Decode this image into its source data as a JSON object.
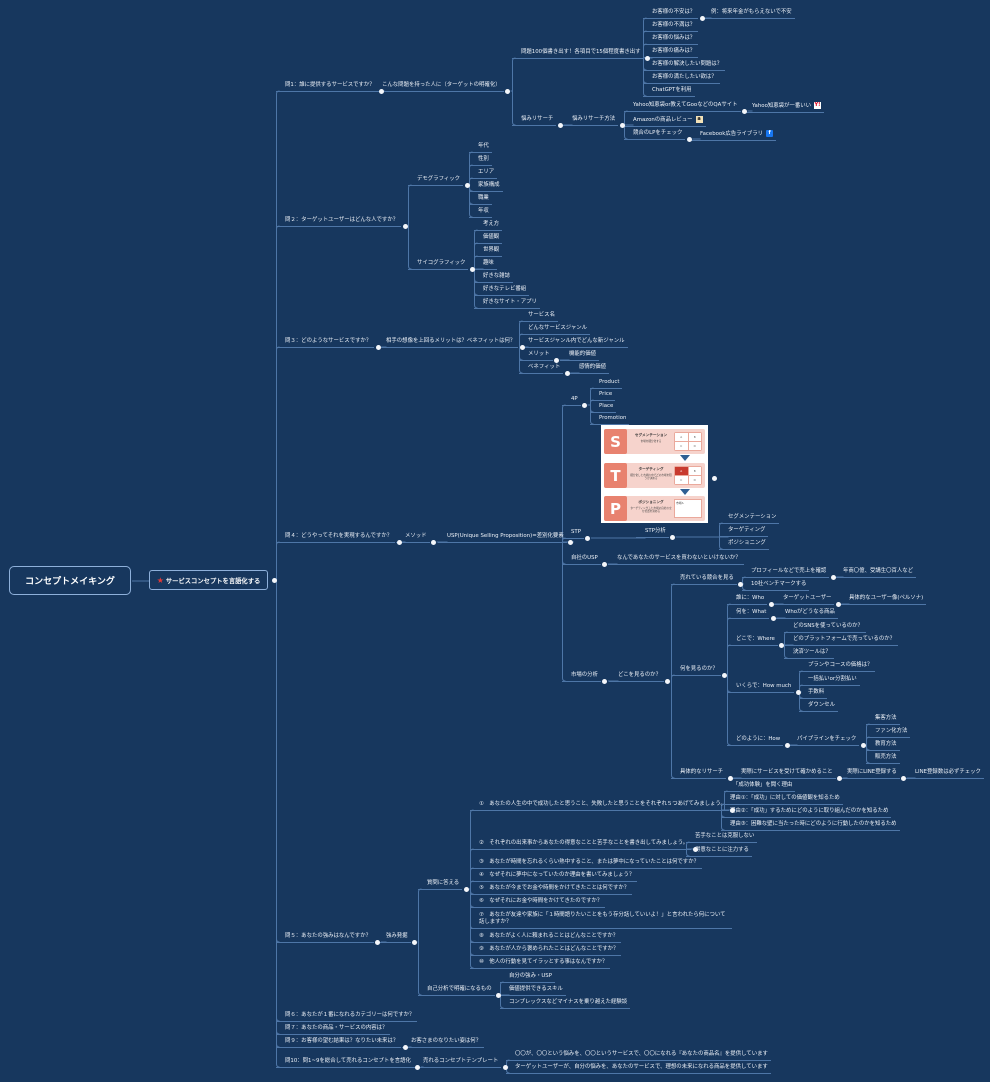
{
  "colors": {
    "background": "#17375e",
    "line": "#4e76a7",
    "star": "#e53935",
    "stp_accent": "#e8826f"
  },
  "root": {
    "text": "コンセプトメイキング"
  },
  "central": {
    "text": "サービスコンセプトを言語化する",
    "icon": "star-icon",
    "children": [
      {
        "text": "問1：誰に提供するサービスですか？",
        "children": [
          {
            "text": "こんな問題を持った人に（ターゲットの明確化）",
            "children": [
              {
                "text": "問題100個書き出す！各項目で15個程度書き出す",
                "children": [
                  {
                    "text": "お客様の不安は？",
                    "children": [
                      {
                        "text": "例：将来年金がもらえないで不安"
                      }
                    ]
                  },
                  {
                    "text": "お客様の不満は？"
                  },
                  {
                    "text": "お客様の悩みは？"
                  },
                  {
                    "text": "お客様の痛みは？"
                  },
                  {
                    "text": "お客様の解決したい問題は？"
                  },
                  {
                    "text": "お客様の満たしたい欲は？"
                  },
                  {
                    "text": "ChatGPTを利用"
                  }
                ]
              },
              {
                "text": "悩みリサーチ",
                "children": [
                  {
                    "text": "悩みリサーチ方法",
                    "children": [
                      {
                        "text": "Yahoo知恵袋or教えてGooなどのQAサイト",
                        "children": [
                          {
                            "text": "Yahoo知恵袋が一番いい",
                            "icon": "yahoo"
                          }
                        ]
                      },
                      {
                        "text": "Amazonの商品レビュー",
                        "icon": "amazon"
                      },
                      {
                        "text": "競合のLPをチェック",
                        "children": [
                          {
                            "text": "Facebook広告ライブラリ",
                            "icon": "facebook"
                          }
                        ]
                      }
                    ]
                  }
                ]
              }
            ]
          }
        ]
      },
      {
        "text": "問２：ターゲットユーザーはどんな人ですか？",
        "children": [
          {
            "text": "デモグラフィック",
            "children": [
              {
                "text": "年代"
              },
              {
                "text": "性別"
              },
              {
                "text": "エリア"
              },
              {
                "text": "家族構成"
              },
              {
                "text": "職業"
              },
              {
                "text": "年収"
              }
            ]
          },
          {
            "text": "サイコグラフィック",
            "children": [
              {
                "text": "考え方"
              },
              {
                "text": "価値観"
              },
              {
                "text": "世界観"
              },
              {
                "text": "趣味"
              },
              {
                "text": "好きな雑誌"
              },
              {
                "text": "好きなテレビ番組"
              },
              {
                "text": "好きなサイト・アプリ"
              }
            ]
          }
        ]
      },
      {
        "text": "問３：どのようなサービスですか？",
        "children": [
          {
            "text": "相手の想像を上回るメリットは？ベネフィットは何？",
            "children": [
              {
                "text": "サービス名"
              },
              {
                "text": "どんなサービスジャンル"
              },
              {
                "text": "サービスジャンル内でどんな新ジャンル"
              },
              {
                "text": "メリット",
                "children": [
                  {
                    "text": "機能的価値"
                  }
                ]
              },
              {
                "text": "ベネフィット",
                "children": [
                  {
                    "text": "感情的価値"
                  }
                ]
              }
            ]
          }
        ]
      },
      {
        "text": "問４：どうやってそれを実現するんですか？",
        "children": [
          {
            "text": "メソッド",
            "children": [
              {
                "text": "USP(Unique Selling Proposition)=差別化要素",
                "children": [
                  {
                    "text": "4P",
                    "children": [
                      {
                        "text": "Product"
                      },
                      {
                        "text": "Price"
                      },
                      {
                        "text": "Place"
                      },
                      {
                        "text": "Promotion"
                      }
                    ]
                  },
                  {
                    "text": "STP",
                    "children": [
                      {
                        "text": "STP分析",
                        "children": [
                          {
                            "text": "セグメンテーション"
                          },
                          {
                            "text": "ターゲティング"
                          },
                          {
                            "text": "ポジショニング"
                          }
                        ]
                      }
                    ]
                  },
                  {
                    "text": "自社のUSP",
                    "children": [
                      {
                        "text": "なんであなたのサービスを買わないといけないか？"
                      }
                    ]
                  },
                  {
                    "text": "市場の分析",
                    "children": [
                      {
                        "text": "どこを見るのか？",
                        "children": [
                          {
                            "text": "売れている競合を見る",
                            "children": [
                              {
                                "text": "プロフィールなどで売上を確認",
                                "children": [
                                  {
                                    "text": "年商〇億、受講生〇百人など"
                                  }
                                ]
                              },
                              {
                                "text": "10社ベンチマークする"
                              }
                            ]
                          },
                          {
                            "text": "何を見るのか？",
                            "children": [
                              {
                                "text": "誰に：Who",
                                "children": [
                                  {
                                    "text": "ターゲットユーザー",
                                    "children": [
                                      {
                                        "text": "具体的なユーザー像(ペルソナ)"
                                      }
                                    ]
                                  }
                                ]
                              },
                              {
                                "text": "何を：What",
                                "children": [
                                  {
                                    "text": "Whoがどうなる商品"
                                  }
                                ]
                              },
                              {
                                "text": "どこで：Where",
                                "children": [
                                  {
                                    "text": "どのSNSを使っているのか？"
                                  },
                                  {
                                    "text": "どのプラットフォームで売っているのか？"
                                  },
                                  {
                                    "text": "決済ツールは？"
                                  }
                                ]
                              },
                              {
                                "text": "いくらで：How much",
                                "children": [
                                  {
                                    "text": "プランやコースの価格は？"
                                  },
                                  {
                                    "text": "一括払いor分割払い"
                                  },
                                  {
                                    "text": "手数料"
                                  },
                                  {
                                    "text": "ダウンセル"
                                  }
                                ]
                              },
                              {
                                "text": "どのように：How",
                                "children": [
                                  {
                                    "text": "パイプラインをチェック",
                                    "children": [
                                      {
                                        "text": "集客方法"
                                      },
                                      {
                                        "text": "ファン化方法"
                                      },
                                      {
                                        "text": "教育方法"
                                      },
                                      {
                                        "text": "販売方法"
                                      }
                                    ]
                                  }
                                ]
                              }
                            ]
                          },
                          {
                            "text": "具体的なリサーチ",
                            "children": [
                              {
                                "text": "実際にサービスを受けて確かめること",
                                "children": [
                                  {
                                    "text": "実際にLINE登録する",
                                    "children": [
                                      {
                                        "text": "LINE登録数は必ずチェック"
                                      }
                                    ]
                                  }
                                ]
                              }
                            ]
                          }
                        ]
                      }
                    ]
                  }
                ]
              }
            ]
          }
        ]
      },
      {
        "text": "問５：あなたの強みはなんですか？",
        "children": [
          {
            "text": "強み発掘",
            "children": [
              {
                "text": "質問に答える",
                "children": [
                  {
                    "text": "①　あなたの人生の中で成功したと思うこと、失敗したと思うことをそれぞれ５つあげてみましょう。",
                    "children": [
                      {
                        "text": "「成功体験」を聞く理由"
                      },
                      {
                        "text": "理由①：「成功」に対しての価値観を知るため"
                      },
                      {
                        "text": "理由②：「成功」するためにどのように取り組んだのかを知るため"
                      },
                      {
                        "text": "理由③：困難な壁に当たった時にどのように行動したのかを知るため"
                      }
                    ]
                  },
                  {
                    "text": "②　それぞれの出来事からあなたの得意なことと苦手なことを書き出してみましょう。",
                    "children": [
                      {
                        "text": "苦手なことは克服しない"
                      },
                      {
                        "text": "得意なことに注力する"
                      }
                    ]
                  },
                  {
                    "text": "③　あなたが時間を忘れるくらい熱中すること、または夢中になっていたことは何ですか？"
                  },
                  {
                    "text": "④　なぜそれに夢中になっていたのか理由を書いてみましょう？"
                  },
                  {
                    "text": "⑤　あなたが今までお金や時間をかけてきたことは何ですか？"
                  },
                  {
                    "text": "⑥　なぜそれにお金や時間をかけてきたのですか？"
                  },
                  {
                    "text": "⑦　あなたが友達や家族に「１時間語りたいことをもう存分話していいよ！」と言われたら何について話しますか？"
                  },
                  {
                    "text": "⑧　あなたがよく人に頼まれることはどんなことですか？"
                  },
                  {
                    "text": "⑨　あなたが人から褒められたことはどんなことですか？"
                  },
                  {
                    "text": "⑩　他人の行動を見てイラッとする事はなんですか？"
                  }
                ]
              },
              {
                "text": "自己分析で明確になるもの",
                "children": [
                  {
                    "text": "自分の強み・USP"
                  },
                  {
                    "text": "価値提供できるスキル"
                  },
                  {
                    "text": "コンプレックスなどマイナスを乗り越えた経験談"
                  }
                ]
              }
            ]
          }
        ]
      },
      {
        "text": "問６：あなたが１番になれるカテゴリーは何ですか？"
      },
      {
        "text": "問７：あなたの商品・サービスの内容は？"
      },
      {
        "text": "問９：お客様の望む結果は？なりたい未来は？",
        "children": [
          {
            "text": "お客さまのなりたい姿は何？"
          }
        ]
      },
      {
        "text": "問10：問1~9を総合して売れるコンセプトを言語化",
        "children": [
          {
            "text": "売れるコンセプトテンプレート",
            "children": [
              {
                "text": "〇〇が、〇〇という悩みを、〇〇というサービスで、〇〇になれる『あなたの商品名』を提供しています"
              },
              {
                "text": "ターゲットユーザーが、自分の悩みを、あなたのサービスで、理想の未来になれる商品を提供しています"
              }
            ]
          }
        ]
      }
    ]
  },
  "stp_image": {
    "s": {
      "letter": "S",
      "title": "セグメンテーション",
      "desc": "市場を細分化する"
    },
    "t": {
      "letter": "T",
      "title": "ターゲティング",
      "desc": "細分化した市場の中でどの市場を狙うか決める"
    },
    "p": {
      "letter": "P",
      "title": "ポジショニング",
      "desc": "ターゲティングした市場の自社の立ち位置を決める",
      "market": "市場A"
    },
    "grid": [
      "A",
      "B",
      "C",
      "D"
    ]
  }
}
